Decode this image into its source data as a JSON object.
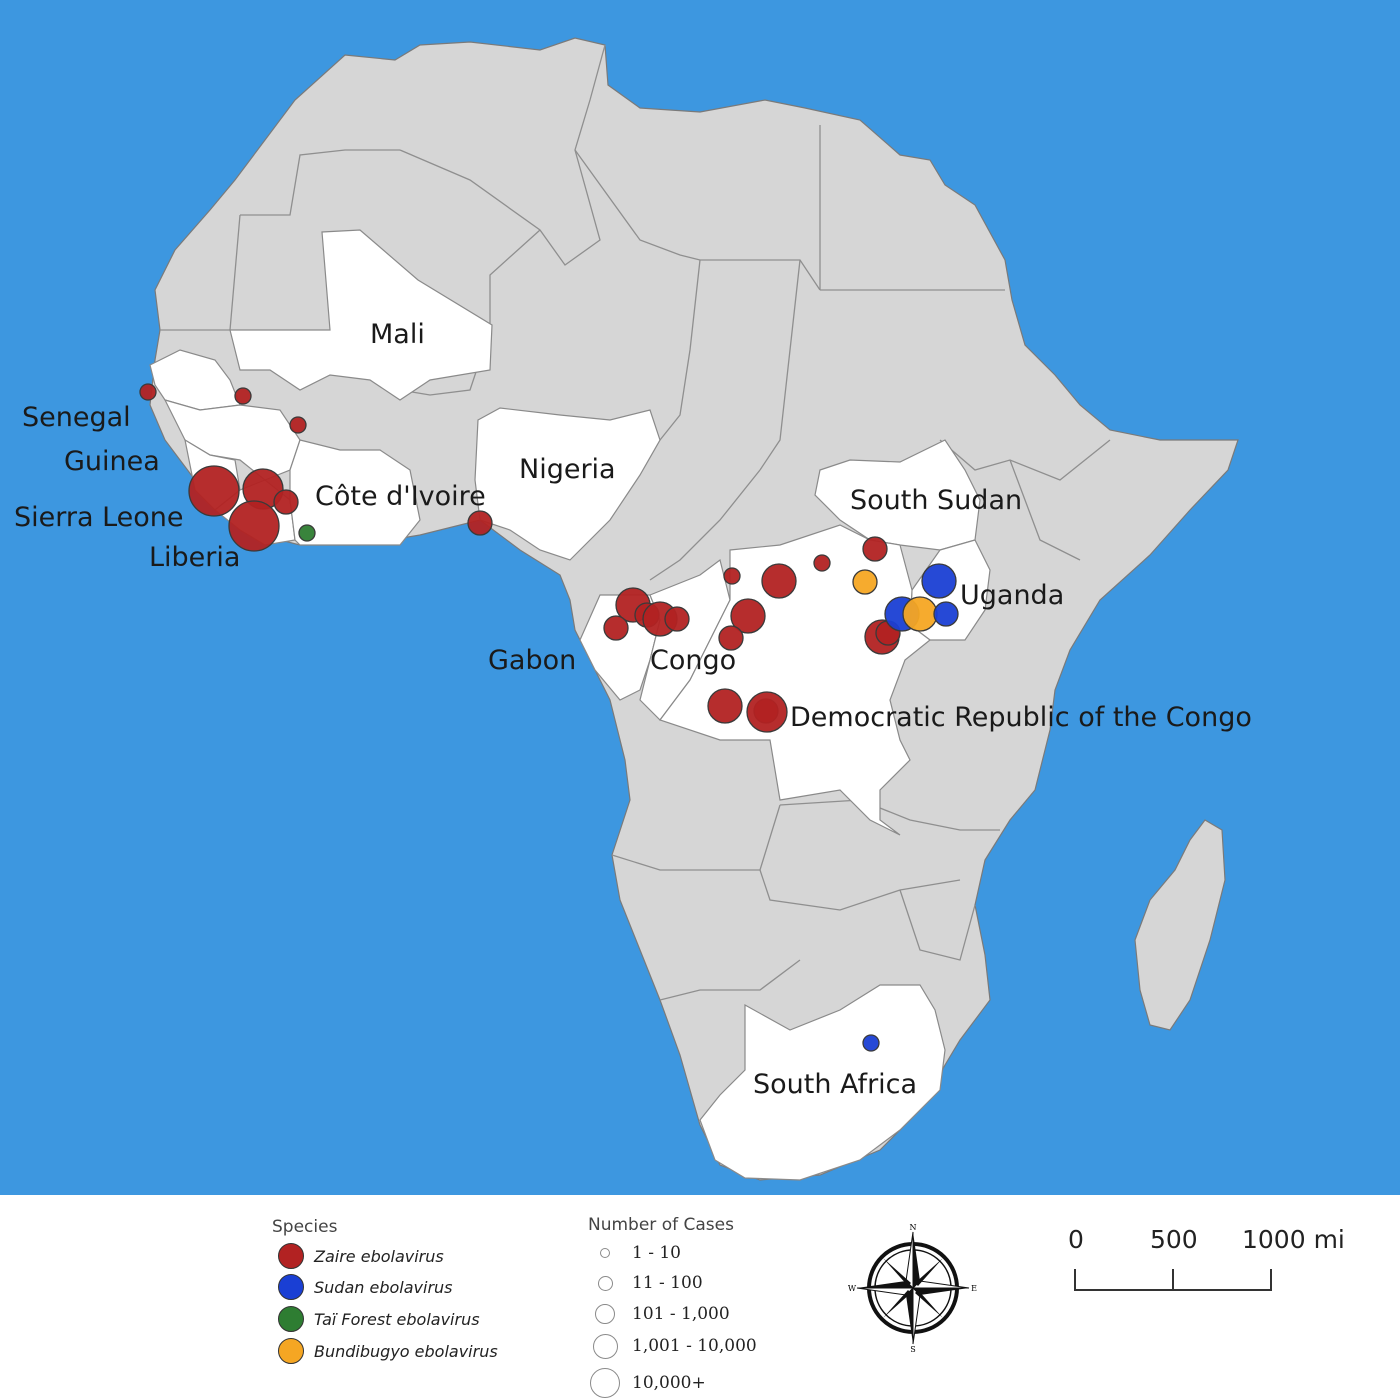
{
  "colors": {
    "ocean": "#3d97e0",
    "land": "#d6d6d6",
    "affected_country": "#ffffff",
    "zaire": "#b22222",
    "sudan": "#1a3fd4",
    "tai_forest": "#2e7d32",
    "bundibugyo": "#f5a623"
  },
  "map": {
    "country_labels": [
      "Mali",
      "Senegal",
      "Guinea",
      "Sierra Leone",
      "Liberia",
      "Côte d'Ivoire",
      "Nigeria",
      "South Sudan",
      "Uganda",
      "Gabon",
      "Congo",
      "Democratic Republic of the Congo",
      "South Africa"
    ],
    "outbreaks": [
      {
        "species": "zaire",
        "case_class": 1
      },
      {
        "species": "zaire",
        "case_class": 1
      },
      {
        "species": "zaire",
        "case_class": 1
      },
      {
        "species": "zaire",
        "case_class": 5
      },
      {
        "species": "zaire",
        "case_class": 4
      },
      {
        "species": "zaire",
        "case_class": 5
      },
      {
        "species": "zaire",
        "case_class": 2
      },
      {
        "species": "tai_forest",
        "case_class": 1
      },
      {
        "species": "zaire",
        "case_class": 2
      },
      {
        "species": "zaire",
        "case_class": 1
      },
      {
        "species": "zaire",
        "case_class": 3
      },
      {
        "species": "zaire",
        "case_class": 1
      },
      {
        "species": "zaire",
        "case_class": 3
      },
      {
        "species": "zaire",
        "case_class": 2
      },
      {
        "species": "zaire",
        "case_class": 2
      },
      {
        "species": "zaire",
        "case_class": 3
      },
      {
        "species": "zaire",
        "case_class": 2
      },
      {
        "species": "zaire",
        "case_class": 3
      },
      {
        "species": "zaire",
        "case_class": 2
      },
      {
        "species": "zaire",
        "case_class": 3
      },
      {
        "species": "zaire",
        "case_class": 2
      },
      {
        "species": "zaire",
        "case_class": 3
      },
      {
        "species": "zaire",
        "case_class": 2
      },
      {
        "species": "zaire",
        "case_class": 4
      },
      {
        "species": "zaire",
        "case_class": 2
      },
      {
        "species": "sudan",
        "case_class": 3
      },
      {
        "species": "bundibugyo",
        "case_class": 2
      },
      {
        "species": "sudan",
        "case_class": 3
      },
      {
        "species": "bundibugyo",
        "case_class": 3
      },
      {
        "species": "sudan",
        "case_class": 2
      },
      {
        "species": "sudan",
        "case_class": 1
      },
      {
        "species": "zaire",
        "case_class": 1
      }
    ]
  },
  "legend": {
    "species_title": "Species",
    "species": [
      {
        "key": "zaire",
        "label": "Zaire ebolavirus"
      },
      {
        "key": "sudan",
        "label": "Sudan ebolavirus"
      },
      {
        "key": "tai_forest",
        "label": "Taï Forest ebolavirus"
      },
      {
        "key": "bundibugyo",
        "label": "Bundibugyo ebolavirus"
      }
    ],
    "cases_title": "Number of Cases",
    "case_classes": [
      "1 - 10",
      "11 - 100",
      "101 - 1,000",
      "1,001 - 10,000",
      "10,000+"
    ]
  },
  "compass": {
    "n": "N",
    "s": "S",
    "e": "E",
    "w": "W"
  },
  "scale": {
    "ticks": [
      "0",
      "500",
      "1000 mi"
    ]
  }
}
